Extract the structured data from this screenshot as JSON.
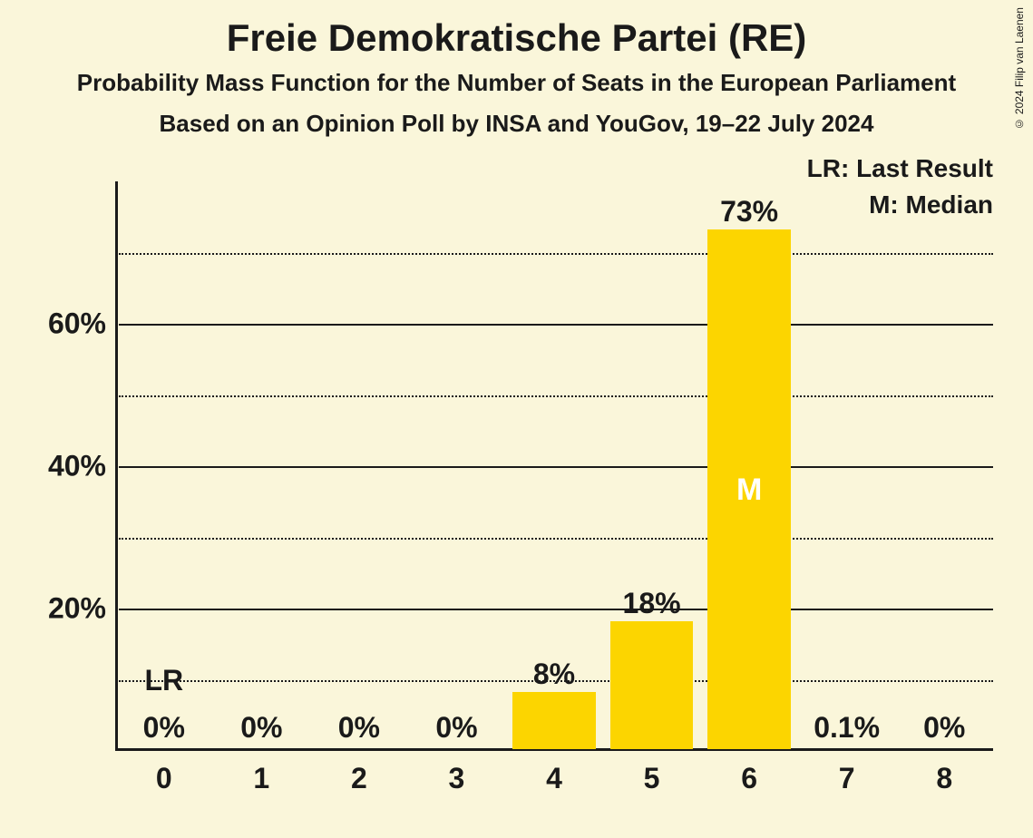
{
  "title": "Freie Demokratische Partei (RE)",
  "subtitle1": "Probability Mass Function for the Number of Seats in the European Parliament",
  "subtitle2": "Based on an Opinion Poll by INSA and YouGov, 19–22 July 2024",
  "copyright": "© 2024 Filip van Laenen",
  "chart": {
    "type": "bar",
    "background_color": "#faf6da",
    "bar_color": "#fcd500",
    "axis_color": "#1a1a1a",
    "grid_major_color": "#1a1a1a",
    "grid_minor_style": "dotted",
    "median_label_color": "#ffffff",
    "ylim": [
      0,
      80
    ],
    "y_major_ticks": [
      20,
      40,
      60
    ],
    "y_minor_ticks": [
      10,
      30,
      50,
      70
    ],
    "y_tick_labels": [
      "20%",
      "40%",
      "60%"
    ],
    "categories": [
      "0",
      "1",
      "2",
      "3",
      "4",
      "5",
      "6",
      "7",
      "8"
    ],
    "values": [
      0,
      0,
      0,
      0,
      8,
      18,
      73,
      0.1,
      0
    ],
    "value_labels": [
      "0%",
      "0%",
      "0%",
      "0%",
      "8%",
      "18%",
      "73%",
      "0.1%",
      "0%"
    ],
    "bar_width_ratio": 0.85,
    "lr_index": 0,
    "median_index": 6,
    "title_fontsize": 42,
    "subtitle_fontsize": 26,
    "axis_label_fontsize": 32,
    "bar_label_fontsize": 32,
    "legend_fontsize": 28
  },
  "legend": {
    "lr": "LR: Last Result",
    "m": "M: Median"
  },
  "markers": {
    "lr": "LR",
    "m": "M"
  }
}
